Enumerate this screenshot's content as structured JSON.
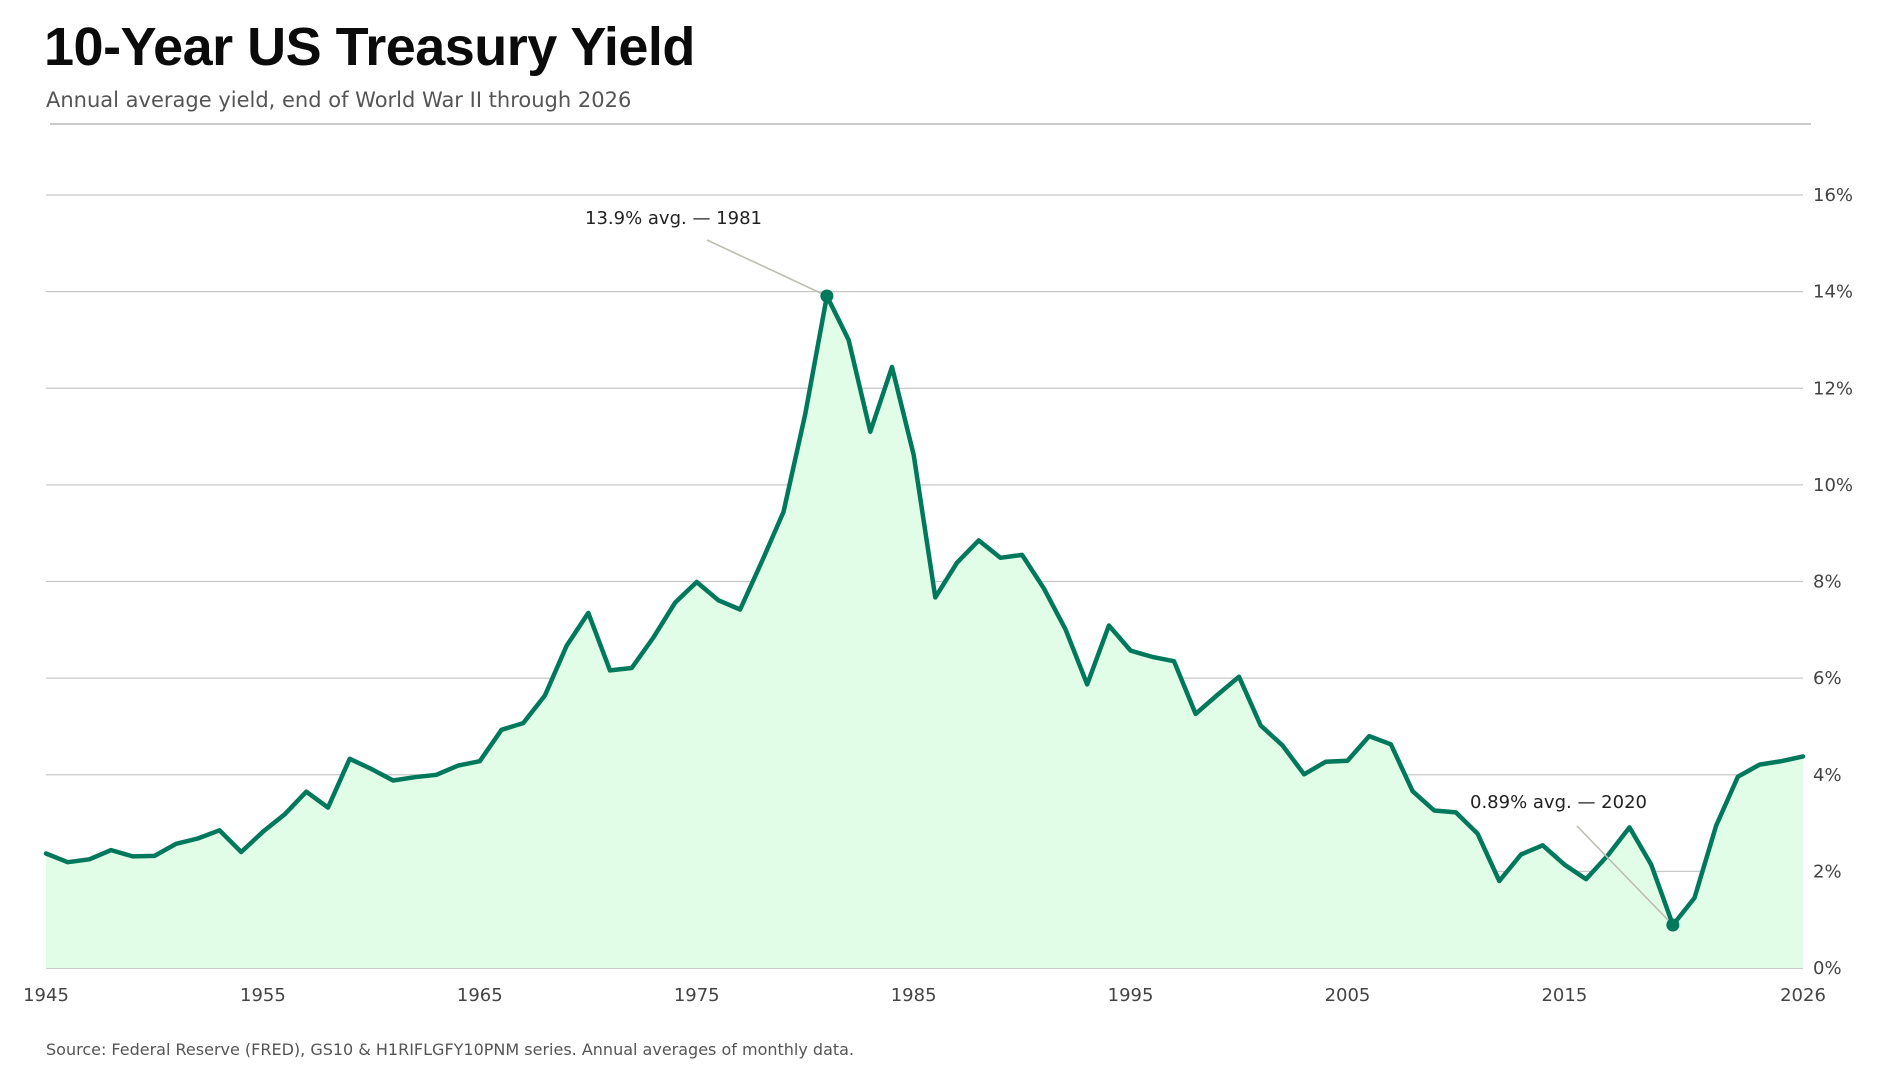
{
  "chart_data": {
    "type": "area",
    "title": "10-Year US Treasury Yield",
    "subtitle": "Annual average yield, end of World War II through 2026",
    "source": "Source: Federal Reserve (FRED), GS10 & H1RIFLGFY10PNM series. Annual averages of monthly data.",
    "xlabel": "",
    "ylabel": "",
    "xlim": [
      1945,
      2026
    ],
    "ylim": [
      0,
      16
    ],
    "x_ticks": [
      1945,
      1955,
      1965,
      1975,
      1985,
      1995,
      2005,
      2015,
      2026
    ],
    "y_ticks": [
      "0%",
      "2%",
      "4%",
      "6%",
      "8%",
      "10%",
      "12%",
      "14%",
      "16%"
    ],
    "grid": true,
    "colors": {
      "line": "#00785c",
      "fill": "#e1fde7",
      "grid": "#c8c8c8",
      "annotation_leader": "#bdbdb4"
    },
    "series": [
      {
        "x": [
          1945,
          1946,
          1947,
          1948,
          1949,
          1950,
          1951,
          1952,
          1953,
          1954,
          1955,
          1956,
          1957,
          1958,
          1959,
          1960,
          1961,
          1962,
          1963,
          1964,
          1965,
          1966,
          1967,
          1968,
          1969,
          1970,
          1971,
          1972,
          1973,
          1974,
          1975,
          1976,
          1977,
          1978,
          1979,
          1980,
          1981,
          1982,
          1983,
          1984,
          1985,
          1986,
          1987,
          1988,
          1989,
          1990,
          1991,
          1992,
          1993,
          1994,
          1995,
          1996,
          1997,
          1998,
          1999,
          2000,
          2001,
          2002,
          2003,
          2004,
          2005,
          2006,
          2007,
          2008,
          2009,
          2010,
          2011,
          2012,
          2013,
          2014,
          2015,
          2016,
          2017,
          2018,
          2019,
          2020,
          2021,
          2022,
          2023,
          2024,
          2025,
          2026
        ],
        "y": [
          2.37,
          2.19,
          2.25,
          2.44,
          2.31,
          2.32,
          2.57,
          2.68,
          2.85,
          2.4,
          2.82,
          3.18,
          3.65,
          3.32,
          4.33,
          4.12,
          3.88,
          3.95,
          4.0,
          4.19,
          4.28,
          4.93,
          5.07,
          5.64,
          6.67,
          7.35,
          6.16,
          6.21,
          6.84,
          7.56,
          7.99,
          7.61,
          7.42,
          8.41,
          9.44,
          11.46,
          13.91,
          13.0,
          11.1,
          12.44,
          10.62,
          7.67,
          8.39,
          8.85,
          8.49,
          8.55,
          7.86,
          7.01,
          5.87,
          7.09,
          6.57,
          6.44,
          6.35,
          5.26,
          5.65,
          6.03,
          5.02,
          4.61,
          4.01,
          4.27,
          4.29,
          4.8,
          4.63,
          3.66,
          3.26,
          3.22,
          2.78,
          1.8,
          2.35,
          2.54,
          2.14,
          1.84,
          2.33,
          2.91,
          2.14,
          0.89,
          1.45,
          2.95,
          3.96,
          4.21,
          4.28,
          4.38
        ]
      }
    ],
    "annotations": [
      {
        "x": 1981,
        "y": 13.91,
        "text": "13.9% avg. — 1981"
      },
      {
        "x": 2020,
        "y": 0.89,
        "text": "0.89% avg. — 2020"
      }
    ]
  }
}
